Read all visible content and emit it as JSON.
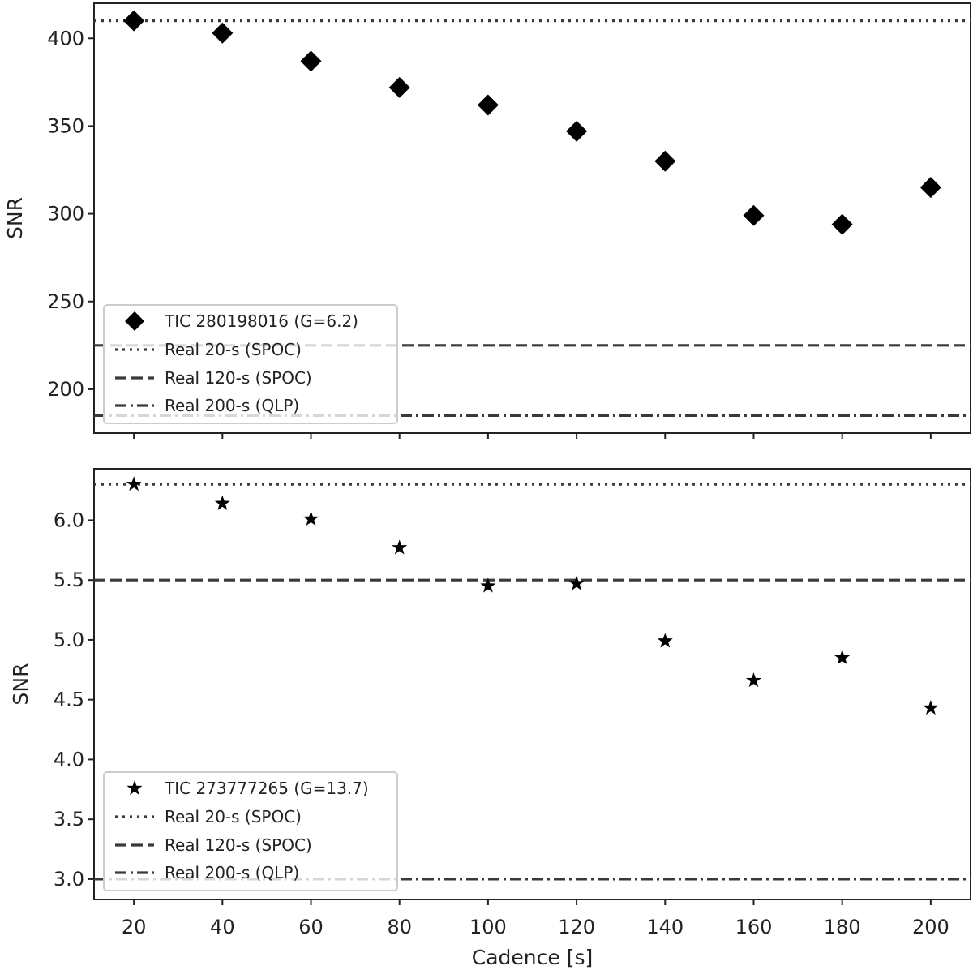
{
  "chart_data": [
    {
      "type": "scatter",
      "marker": "diamond",
      "x": [
        20,
        40,
        60,
        80,
        100,
        120,
        140,
        160,
        180,
        200
      ],
      "series": [
        {
          "name": "TIC 280198016 (G=6.2)",
          "values": [
            410,
            403,
            387,
            372,
            362,
            347,
            330,
            299,
            294,
            315
          ]
        }
      ],
      "reference_lines": [
        {
          "name": "Real 20-s (SPOC)",
          "value": 410,
          "style": "dotted"
        },
        {
          "name": "Real 120-s (SPOC)",
          "value": 225,
          "style": "dashed"
        },
        {
          "name": "Real 200-s (QLP)",
          "value": 185,
          "style": "dashdot"
        }
      ],
      "ylabel": "SNR",
      "xlabel": "",
      "xlim": [
        11,
        209
      ],
      "ylim": [
        175,
        420
      ],
      "yticks": [
        "200",
        "250",
        "300",
        "350",
        "400"
      ],
      "legend_placement": "lower-left",
      "grid": false
    },
    {
      "type": "scatter",
      "marker": "star",
      "x": [
        20,
        40,
        60,
        80,
        100,
        120,
        140,
        160,
        180,
        200
      ],
      "series": [
        {
          "name": "TIC 273777265 (G=13.7)",
          "values": [
            6.3,
            6.14,
            6.01,
            5.77,
            5.45,
            5.47,
            4.99,
            4.66,
            4.85,
            4.43
          ]
        }
      ],
      "reference_lines": [
        {
          "name": "Real 20-s (SPOC)",
          "value": 6.3,
          "style": "dotted"
        },
        {
          "name": "Real 120-s (SPOC)",
          "value": 5.5,
          "style": "dashed"
        },
        {
          "name": "Real 200-s (QLP)",
          "value": 3.0,
          "style": "dashdot"
        }
      ],
      "ylabel": "SNR",
      "xlabel": "Cadence [s]",
      "xlim": [
        11,
        209
      ],
      "ylim": [
        2.83,
        6.43
      ],
      "yticks": [
        "3.0",
        "3.5",
        "4.0",
        "4.5",
        "5.0",
        "5.5",
        "6.0"
      ],
      "xticks": [
        "20",
        "40",
        "60",
        "80",
        "100",
        "120",
        "140",
        "160",
        "180",
        "200"
      ],
      "legend_placement": "lower-left",
      "grid": false
    }
  ],
  "colors": {
    "marker": "#000000",
    "reference_line": "#3a3a3a",
    "axes": "#222222",
    "legend_border": "#cccccc"
  }
}
